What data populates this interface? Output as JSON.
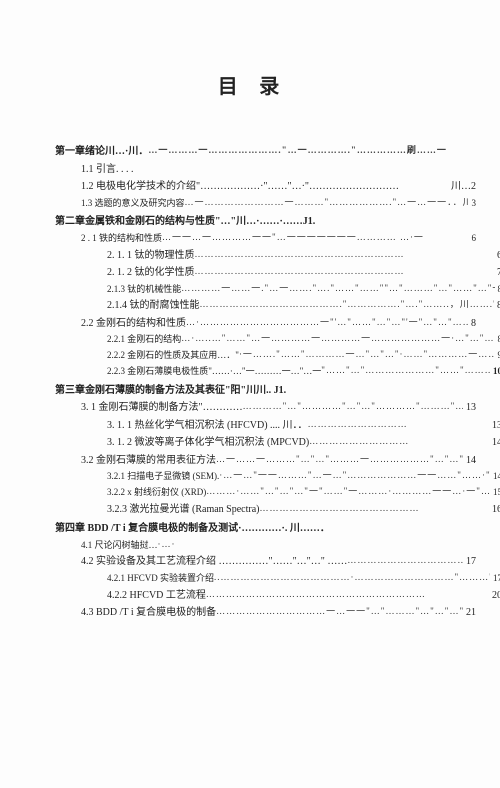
{
  "title": "目 录",
  "leader_default": "…………………………………………………………………………………………………………………………",
  "entries": [
    {
      "level": 0,
      "label": "第一章绪论川…·川．",
      "leader": "…一………一………………….\"…一………….\"……………刷……一…·…\" .",
      "page": "",
      "bold": true
    },
    {
      "level": 1,
      "label": "1.1 引言. . . .",
      "leader": "",
      "page": ""
    },
    {
      "level": 1,
      "label": "1.2 电极电化学技术的介绍\"………………·\"……\"…·\"………………………",
      "leader": "",
      "page": "川…2"
    },
    {
      "level": 1,
      "label": "1.3 选题的意义及研究内容",
      "leader": "…一……………………一………\"……………….\"…一…一一．．川．．J1．．．",
      "page": "3",
      "small": true
    },
    {
      "type": "spacer"
    },
    {
      "level": 0,
      "label": "第二章金属铁和金刚石的结构与性质\"…\"川…·……·……J1.",
      "leader": "",
      "page": "",
      "bold": true
    },
    {
      "level": 1,
      "label": "2 . 1 铁的结构和性质",
      "leader": "…一一…一…………一一\"…一一一一一一一………… …·一",
      "page": "6",
      "small": true
    },
    {
      "level": 2,
      "label": "2.  1.  1   钛的物理性质",
      "leader": "………………………………………………………",
      "page": "6"
    },
    {
      "level": 2,
      "label": "2.  1.  2   钛的化学性质",
      "leader": "………………………………………………………",
      "page": "7"
    },
    {
      "level": 2,
      "label": "2.1.3 钛的机械性能",
      "leader": "…………一……一.\"…一…….\"….\"……\"……\"\"…\"………\"…\"……\"…\"一………一\"…\"… .·…\"",
      "page": "8",
      "small": true
    },
    {
      "level": 2,
      "label": "2.1.4 钛的耐腐蚀性能",
      "leader": "…………………………………….\"…………….\"….\"……..，川…….\"……….",
      "page": "8"
    },
    {
      "level": 1,
      "label": "2.2  金刚石的结构和性质",
      "leader": "…·………………………………一\"'…\"……\"…\"…\"'一\"…\"…\"……\"…\"………·…·",
      "page": "8"
    },
    {
      "level": 2,
      "label": "2.2.1  金刚石的结构",
      "leader": "…·…..…\"……\"…一…………一…………一…………………一·…\"…\"…\"'一…………·…· ",
      "page": "8",
      "small": true
    },
    {
      "level": 2,
      "label": "2.2.2  金刚石的性质及其应用…．\"",
      "leader": "·一…….\"……\"…………一…\"…\"…\"·……\"…………一……\"…·…….川. J1 …·",
      "page": "9",
      "small": true
    },
    {
      "level": 2,
      "label": "2.2.3  金刚石薄膜电极性质\"……·…\"一………一…\"…一",
      "leader": "\"……\"…\"…………………\"……\"………\"…\"一………一",
      "page": "10",
      "small": true,
      "bold_page": true
    },
    {
      "type": "spacer"
    },
    {
      "level": 0,
      "label": "第三章金刚石薄膜的制备方法及其表征\"阳\"川川.. J1.",
      "leader": "",
      "page": "",
      "bold": true
    },
    {
      "level": 1,
      "label": "3.  1   金刚石薄膜的制备方法\"…………",
      "leader": "…………\"…\"…………\"…\"…\"…………\"………\"…\"…·………·",
      "page": "13"
    },
    {
      "level": 2,
      "label": "3. 1. 1 热丝化学气相沉积法 (HFCVD) ....  川．．",
      "leader": "…………………………",
      "page": "13"
    },
    {
      "level": 2,
      "label": "3.  1.  2  微波等离子体化学气相沉积法 (MPCVD)",
      "leader": " …………………………",
      "page": "14"
    },
    {
      "level": 1,
      "label": "3.2   金刚石薄膜的常用表征方法",
      "leader": "…一……一………\"…\"…\"………一………………\"…\"…\"…\"……………",
      "page": "14"
    },
    {
      "level": 2,
      "label": "3.2.1  扫描电子显微镜 (SEM). ",
      "leader": "·…一…\"一一………\"…一…\"…………………一一……\"……·\"",
      "page": "14",
      "small": true
    },
    {
      "level": 2,
      "label": "3.2.2 x 射线衍射仪 (XRD)",
      "leader": "………·……\"…\"…\"…\"一\"……\"一………·…………一一…·一\"…\"一…\"…\"一一\"……\"…·\"",
      "page": "15",
      "small": true
    },
    {
      "level": 2,
      "label": "3.2.3 激光拉曼光谱 (Raman Spectra)",
      "leader": " …………………………………………",
      "page": "16"
    },
    {
      "type": "spacer"
    },
    {
      "level": 0,
      "label": "第四章 BDD /T i 复合膜电极的制备及测试·…………·. 川……．",
      "leader": "",
      "page": "",
      "bold": true
    },
    {
      "level": 1,
      "label": "4.1       尺论闪树轴挝…",
      "leader": "·…·",
      "page": "",
      "small": true
    },
    {
      "level": 1,
      "label": "4.2   实验设备及其工艺流程介绍 ……………\"……\"…\"…\" ……",
      "leader": "………………………………",
      "page": "17"
    },
    {
      "level": 2,
      "label": "4.2.1 HFCVD 实验装置介绍",
      "leader": "..…………………………………·…………………………\"………\"…\"…\"…\"…\"…………·",
      "page": "17",
      "small": true
    },
    {
      "level": 2,
      "label": "4.2.2 HFCVD 工艺流程",
      "leader": "…………………………………………………………",
      "page": "20"
    },
    {
      "level": 1,
      "label": "4.3 BDD /T i 复合膜电极的制备",
      "leader": "……………………………一…一一\"…\"………\"…\"…\"…\"……·一…·",
      "page": "21"
    }
  ]
}
